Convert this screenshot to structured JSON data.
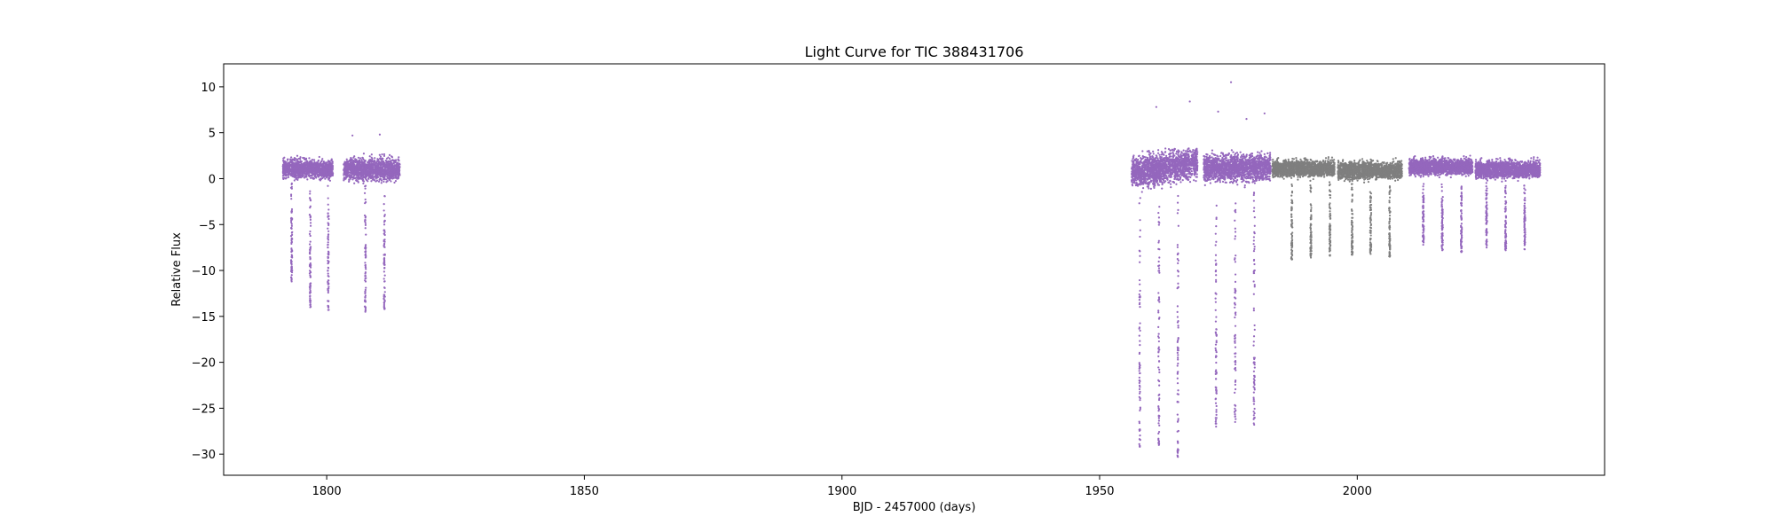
{
  "chart_data": {
    "type": "scatter",
    "title": "Light Curve for TIC 388431706",
    "xlabel": "BJD - 2457000 (days)",
    "ylabel": "Relative Flux",
    "xlim": [
      1780,
      2048
    ],
    "ylim": [
      -32.3,
      12.5
    ],
    "xticks": [
      1800,
      1850,
      1900,
      1950,
      2000
    ],
    "yticks": [
      10,
      5,
      0,
      -5,
      -10,
      -15,
      -20,
      -25,
      -30
    ],
    "grid": false,
    "colors": {
      "purple": "#9467bd",
      "gray": "#7f7f7f"
    },
    "series": [
      {
        "color": "purple",
        "segments": [
          {
            "x": [
              1791.5,
              1801.2
            ],
            "base": 1.1,
            "scatter": 1.5,
            "slope": -0.1
          },
          {
            "x": [
              1803.3,
              1814.2
            ],
            "base": 1.0,
            "scatter": 1.8,
            "slope": 0.0
          },
          {
            "x": [
              1956.2,
              1969.0
            ],
            "base": 0.7,
            "scatter": 2.6,
            "slope": 1.0
          },
          {
            "x": [
              1970.2,
              1983.2
            ],
            "base": 1.2,
            "scatter": 2.2,
            "slope": 0.0
          },
          {
            "x": [
              2010.0,
              2022.4
            ],
            "base": 1.3,
            "scatter": 1.3,
            "slope": 0.0
          },
          {
            "x": [
              2022.9,
              2035.5
            ],
            "base": 1.0,
            "scatter": 1.4,
            "slope": 0.0
          }
        ],
        "dips": [
          {
            "x": 1793.2,
            "depth": -11.2
          },
          {
            "x": 1796.8,
            "depth": -14.0
          },
          {
            "x": 1800.3,
            "depth": -14.3
          },
          {
            "x": 1807.5,
            "depth": -14.5
          },
          {
            "x": 1811.2,
            "depth": -14.2
          },
          {
            "x": 1957.8,
            "depth": -29.2
          },
          {
            "x": 1961.5,
            "depth": -29.0
          },
          {
            "x": 1965.2,
            "depth": -30.3
          },
          {
            "x": 1972.6,
            "depth": -27.0
          },
          {
            "x": 1976.3,
            "depth": -26.5
          },
          {
            "x": 1980.0,
            "depth": -26.8
          },
          {
            "x": 2012.8,
            "depth": -7.2
          },
          {
            "x": 2016.5,
            "depth": -7.8
          },
          {
            "x": 2020.2,
            "depth": -8.0
          },
          {
            "x": 2025.1,
            "depth": -7.5
          },
          {
            "x": 2028.8,
            "depth": -7.8
          },
          {
            "x": 2032.5,
            "depth": -7.7
          }
        ],
        "outliers": [
          {
            "x": 1961.0,
            "y": 7.8
          },
          {
            "x": 1967.5,
            "y": 8.4
          },
          {
            "x": 1973.0,
            "y": 7.3
          },
          {
            "x": 1975.5,
            "y": 10.5
          },
          {
            "x": 1978.5,
            "y": 6.5
          },
          {
            "x": 1982.0,
            "y": 7.1
          },
          {
            "x": 1805.0,
            "y": 4.7
          },
          {
            "x": 1810.3,
            "y": 4.8
          }
        ]
      },
      {
        "color": "gray",
        "segments": [
          {
            "x": [
              1983.5,
              1995.6
            ],
            "base": 1.1,
            "scatter": 1.3,
            "slope": 0.0
          },
          {
            "x": [
              1996.2,
              2008.7
            ],
            "base": 0.9,
            "scatter": 1.4,
            "slope": 0.0
          }
        ],
        "dips": [
          {
            "x": 1987.3,
            "depth": -8.8
          },
          {
            "x": 1991.0,
            "depth": -8.6
          },
          {
            "x": 1994.7,
            "depth": -8.4
          },
          {
            "x": 1999.0,
            "depth": -8.3
          },
          {
            "x": 2002.6,
            "depth": -8.2
          },
          {
            "x": 2006.3,
            "depth": -8.5
          }
        ],
        "outliers": []
      }
    ]
  }
}
